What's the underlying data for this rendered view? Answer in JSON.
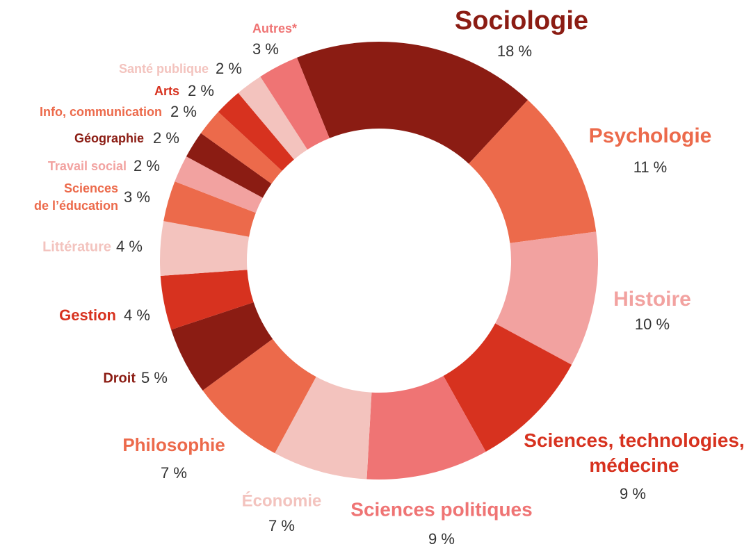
{
  "chart_data": {
    "type": "donut",
    "categories": [
      "Sociologie",
      "Psychologie",
      "Histoire",
      "Sciences, technologies,\nmédecine",
      "Sciences politiques",
      "Économie",
      "Philosophie",
      "Droit",
      "Gestion",
      "Littérature",
      "Sciences\nde l’éducation",
      "Travail social",
      "Géographie",
      "Info, communication",
      "Arts",
      "Santé publique",
      "Autres*"
    ],
    "values": [
      18,
      11,
      10,
      9,
      9,
      7,
      7,
      5,
      4,
      4,
      3,
      2,
      2,
      2,
      2,
      2,
      3
    ],
    "value_labels": [
      "18 %",
      "11 %",
      "10 %",
      "9 %",
      "9 %",
      "7 %",
      "7 %",
      "5 %",
      "4 %",
      "4 %",
      "3 %",
      "2 %",
      "2 %",
      "2 %",
      "2 %",
      "2 %",
      "3 %"
    ],
    "colors": [
      "#8b1c13",
      "#ec6a4b",
      "#f2a2a0",
      "#d7321f",
      "#ef7474",
      "#f3c3be",
      "#ec6a4b",
      "#8b1c13",
      "#d7321f",
      "#f3c3be",
      "#ec6a4b",
      "#f2a2a0",
      "#8b1c13",
      "#ec6a4b",
      "#d7321f",
      "#f3c3be",
      "#ef7474"
    ]
  }
}
